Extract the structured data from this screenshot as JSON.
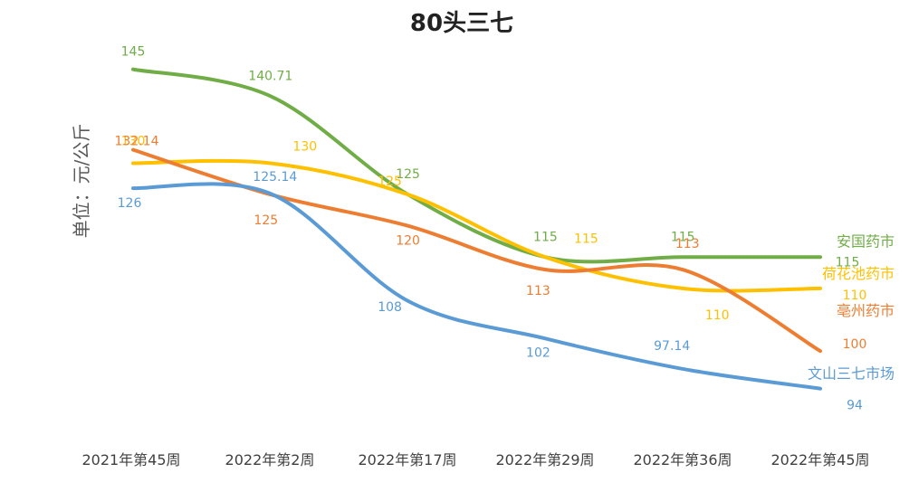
{
  "chart_data": {
    "type": "line",
    "title": "80头三七",
    "xlabel": "",
    "ylabel": "单位：元/公斤",
    "categories": [
      "2021年第45周",
      "2022年第2周",
      "2022年第17周",
      "2022年第29周",
      "2022年第36周",
      "2022年第45周"
    ],
    "ylim": [
      85,
      150
    ],
    "grid": false,
    "legend": "series labels at line ends (right)",
    "series": [
      {
        "name": "安国药市",
        "color": "#70AD47",
        "values": [
          145,
          140.71,
          125,
          115,
          115,
          115
        ],
        "labels": [
          "145",
          "140.71",
          "125",
          "115",
          "115",
          "115"
        ]
      },
      {
        "name": "荷花池药市",
        "color": "#FFC000",
        "values": [
          130,
          130,
          125,
          115,
          110,
          110
        ],
        "labels": [
          "130",
          "130",
          "125",
          "115",
          "110",
          "110"
        ]
      },
      {
        "name": "亳州药市",
        "color": "#ED7D31",
        "values": [
          132.14,
          125,
          120,
          113,
          113,
          100
        ],
        "labels": [
          "132.14",
          "125",
          "120",
          "113",
          "113",
          "100"
        ]
      },
      {
        "name": "文山三七市场",
        "color": "#5B9BD5",
        "values": [
          126,
          125.14,
          108,
          102,
          97.14,
          94
        ],
        "labels": [
          "126",
          "125.14",
          "108",
          "102",
          "97.14",
          "94"
        ]
      }
    ]
  }
}
